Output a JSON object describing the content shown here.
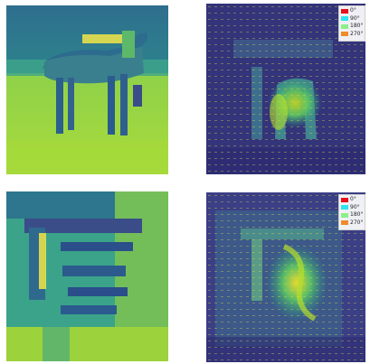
{
  "colors": {
    "bg_green": "#9bd13a",
    "bg_yellowgreen": "#b7dc2f",
    "teal": "#21908d",
    "dark_teal": "#2f6a8e",
    "navy": "#3b4d89",
    "purple": "#440154",
    "bright_yellow": "#fde725"
  },
  "figure": {
    "panels": [
      {
        "id": "tl",
        "subject": "horse image"
      },
      {
        "id": "tr",
        "subject": "response map with arrows"
      },
      {
        "id": "bl",
        "subject": "tilted image"
      },
      {
        "id": "br",
        "subject": "response map with arrows"
      }
    ]
  },
  "legend": {
    "items": [
      {
        "label": "0°",
        "color": "#e8101a"
      },
      {
        "label": "90°",
        "color": "#2de6ee"
      },
      {
        "label": "180°",
        "color": "#8bf08a"
      },
      {
        "label": "270°",
        "color": "#f08a2a"
      }
    ]
  }
}
